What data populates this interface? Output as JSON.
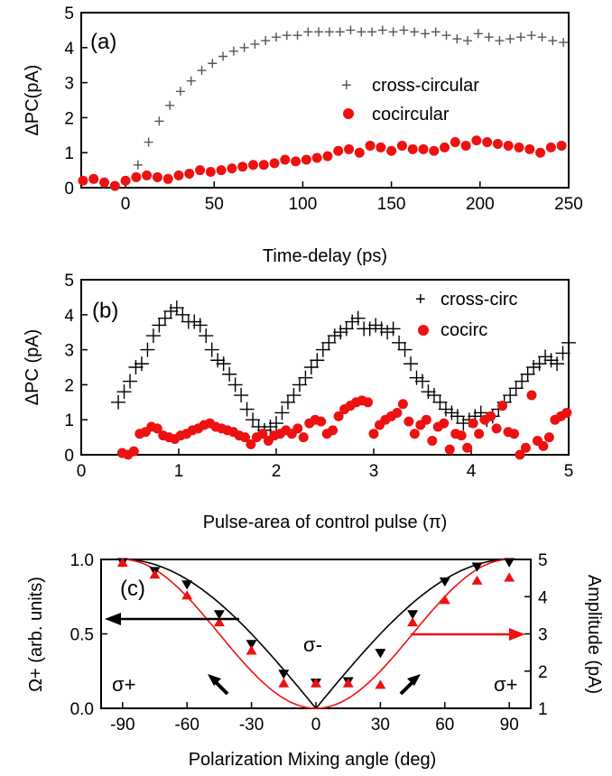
{
  "chart_data": [
    {
      "type": "scatter",
      "panel_label": "(a)",
      "xlabel": "Time-delay (ps)",
      "ylabel": "ΔPC(pA)",
      "xlim": [
        -25,
        250
      ],
      "ylim": [
        0,
        5
      ],
      "xticks": [
        "0",
        "50",
        "100",
        "150",
        "200",
        "250"
      ],
      "yticks": [
        "0",
        "1",
        "2",
        "3",
        "4",
        "5"
      ],
      "legend_position": "right",
      "series": [
        {
          "name": "cross-circular",
          "marker": "plus",
          "color": "#555555",
          "x": [
            7,
            13,
            19,
            25,
            31,
            37,
            43,
            49,
            55,
            61,
            67,
            73,
            79,
            85,
            91,
            97,
            103,
            109,
            115,
            121,
            127,
            133,
            139,
            145,
            151,
            157,
            163,
            169,
            175,
            181,
            187,
            193,
            199,
            205,
            211,
            217,
            223,
            229,
            235,
            241,
            247
          ],
          "y": [
            0.65,
            1.3,
            1.9,
            2.35,
            2.75,
            3.05,
            3.35,
            3.55,
            3.75,
            3.9,
            4.0,
            4.1,
            4.2,
            4.3,
            4.35,
            4.35,
            4.45,
            4.45,
            4.45,
            4.45,
            4.5,
            4.45,
            4.45,
            4.5,
            4.45,
            4.5,
            4.45,
            4.4,
            4.45,
            4.35,
            4.25,
            4.2,
            4.4,
            4.3,
            4.2,
            4.25,
            4.3,
            4.35,
            4.3,
            4.2,
            4.15
          ]
        },
        {
          "name": "cocircular",
          "marker": "circle",
          "color": "#ee1111",
          "x": [
            -24,
            -18,
            -12,
            -6,
            0,
            6,
            12,
            18,
            24,
            30,
            36,
            42,
            48,
            54,
            60,
            66,
            72,
            78,
            84,
            90,
            96,
            102,
            108,
            114,
            120,
            126,
            132,
            138,
            144,
            150,
            156,
            162,
            168,
            174,
            180,
            186,
            192,
            198,
            204,
            210,
            216,
            222,
            228,
            234,
            240,
            246
          ],
          "y": [
            0.2,
            0.25,
            0.15,
            0.05,
            0.2,
            0.3,
            0.35,
            0.3,
            0.25,
            0.35,
            0.4,
            0.5,
            0.45,
            0.5,
            0.55,
            0.6,
            0.65,
            0.65,
            0.7,
            0.8,
            0.75,
            0.8,
            0.85,
            0.9,
            1.05,
            1.1,
            1.0,
            1.2,
            1.15,
            1.05,
            1.2,
            1.1,
            1.1,
            1.05,
            1.15,
            1.3,
            1.2,
            1.35,
            1.3,
            1.25,
            1.2,
            1.15,
            1.1,
            1.0,
            1.15,
            1.2
          ]
        }
      ]
    },
    {
      "type": "scatter",
      "panel_label": "(b)",
      "xlabel": "Pulse-area of control pulse (π)",
      "ylabel": "ΔPC (pA)",
      "xlim": [
        0,
        5
      ],
      "ylim": [
        0,
        5
      ],
      "xticks": [
        "0",
        "1",
        "2",
        "3",
        "4",
        "5"
      ],
      "yticks": [
        "0",
        "1",
        "2",
        "3",
        "4",
        "5"
      ],
      "legend_position": "top-right",
      "series": [
        {
          "name": "cross-circ",
          "marker": "plus",
          "color": "#000000",
          "x": [
            0.38,
            0.44,
            0.5,
            0.56,
            0.62,
            0.68,
            0.74,
            0.8,
            0.86,
            0.92,
            0.98,
            1.04,
            1.1,
            1.16,
            1.22,
            1.28,
            1.34,
            1.4,
            1.46,
            1.52,
            1.58,
            1.64,
            1.7,
            1.76,
            1.82,
            1.88,
            1.94,
            2.0,
            2.06,
            2.12,
            2.18,
            2.24,
            2.3,
            2.36,
            2.42,
            2.48,
            2.54,
            2.6,
            2.66,
            2.72,
            2.78,
            2.84,
            2.9,
            2.96,
            3.02,
            3.08,
            3.14,
            3.2,
            3.26,
            3.32,
            3.38,
            3.44,
            3.5,
            3.56,
            3.62,
            3.68,
            3.74,
            3.8,
            3.86,
            3.92,
            3.98,
            4.04,
            4.1,
            4.16,
            4.22,
            4.28,
            4.34,
            4.4,
            4.46,
            4.52,
            4.58,
            4.64,
            4.7,
            4.76,
            4.82,
            4.88,
            4.94,
            5.0
          ],
          "y": [
            1.5,
            1.8,
            2.1,
            2.5,
            2.6,
            3.0,
            3.4,
            3.7,
            3.9,
            4.1,
            4.2,
            4.0,
            3.8,
            3.8,
            3.7,
            3.4,
            3.0,
            2.7,
            2.6,
            2.3,
            2.0,
            1.7,
            1.3,
            1.0,
            0.8,
            0.7,
            0.8,
            0.9,
            1.2,
            1.5,
            1.7,
            2.0,
            2.2,
            2.5,
            2.7,
            3.0,
            3.2,
            3.4,
            3.5,
            3.6,
            3.8,
            3.9,
            3.6,
            3.6,
            3.7,
            3.6,
            3.5,
            3.6,
            3.2,
            3.0,
            2.6,
            2.2,
            2.1,
            1.8,
            1.7,
            1.5,
            1.3,
            1.2,
            1.1,
            0.9,
            1.0,
            1.1,
            1.2,
            1.0,
            1.1,
            1.3,
            1.5,
            1.7,
            1.9,
            2.1,
            2.3,
            2.5,
            2.6,
            2.8,
            2.7,
            2.6,
            2.9,
            3.2
          ]
        },
        {
          "name": "cocirc",
          "marker": "circle",
          "color": "#ee1111",
          "x": [
            0.42,
            0.48,
            0.54,
            0.6,
            0.66,
            0.72,
            0.78,
            0.84,
            0.9,
            0.96,
            1.02,
            1.08,
            1.14,
            1.2,
            1.26,
            1.32,
            1.38,
            1.44,
            1.5,
            1.56,
            1.62,
            1.68,
            1.74,
            1.8,
            1.86,
            1.92,
            1.98,
            2.04,
            2.1,
            2.16,
            2.22,
            2.28,
            2.34,
            2.4,
            2.46,
            2.52,
            2.58,
            2.64,
            2.7,
            2.76,
            2.82,
            2.88,
            2.94,
            3.0,
            3.06,
            3.12,
            3.18,
            3.24,
            3.3,
            3.36,
            3.42,
            3.48,
            3.54,
            3.6,
            3.66,
            3.72,
            3.78,
            3.84,
            3.9,
            3.96,
            4.02,
            4.08,
            4.14,
            4.2,
            4.26,
            4.32,
            4.38,
            4.44,
            4.5,
            4.56,
            4.62,
            4.68,
            4.74,
            4.8,
            4.86,
            4.92,
            4.98
          ],
          "y": [
            0.05,
            0.0,
            0.1,
            0.6,
            0.65,
            0.8,
            0.75,
            0.55,
            0.5,
            0.45,
            0.55,
            0.6,
            0.7,
            0.75,
            0.85,
            0.9,
            0.8,
            0.75,
            0.7,
            0.65,
            0.55,
            0.5,
            0.3,
            0.5,
            0.6,
            0.4,
            0.55,
            0.6,
            0.7,
            0.6,
            0.75,
            0.5,
            0.9,
            1.0,
            0.95,
            0.6,
            0.7,
            1.1,
            1.3,
            1.4,
            1.5,
            1.55,
            1.5,
            0.6,
            0.85,
            1.0,
            1.1,
            1.2,
            1.45,
            0.95,
            0.6,
            0.85,
            1.0,
            0.4,
            0.8,
            0.9,
            0.15,
            0.6,
            0.55,
            0.2,
            0.9,
            0.6,
            1.0,
            1.1,
            0.75,
            1.4,
            0.65,
            0.6,
            0.0,
            0.2,
            1.7,
            0.4,
            0.25,
            0.5,
            1.0,
            1.1,
            1.2
          ]
        }
      ]
    },
    {
      "type": "line",
      "panel_label": "(c)",
      "xlabel": "Polarization Mixing angle (deg)",
      "ylabel": "Ω+ (arb. units)",
      "ylabel_right": "Amplitude (pA)",
      "xlim": [
        -100,
        100
      ],
      "ylim": [
        0,
        1
      ],
      "ylim_right": [
        1,
        5
      ],
      "xticks": [
        "-90",
        "-60",
        "-30",
        "0",
        "30",
        "60",
        "90"
      ],
      "yticks": [
        "0.0",
        "0.5",
        "1.0"
      ],
      "yticks_right": [
        "1",
        "2",
        "3",
        "4",
        "5"
      ],
      "annotations": [
        "σ+",
        "σ-",
        "σ+"
      ],
      "series": [
        {
          "marker": "triangle-down",
          "color": "#000000",
          "curve": "abs-sin",
          "x": [
            -90,
            -75,
            -60,
            -45,
            -30,
            -15,
            0,
            15,
            30,
            45,
            60,
            75,
            90
          ],
          "y": [
            0.98,
            0.92,
            0.83,
            0.63,
            0.43,
            0.23,
            0.17,
            0.18,
            0.37,
            0.63,
            0.85,
            0.95,
            0.98
          ]
        },
        {
          "marker": "triangle-up",
          "color": "#ee1111",
          "curve": "sin-squared",
          "x": [
            -90,
            -75,
            -60,
            -45,
            -30,
            -15,
            0,
            15,
            30,
            45,
            60,
            75,
            90
          ],
          "y": [
            0.98,
            0.9,
            0.76,
            0.58,
            0.39,
            0.17,
            0.17,
            0.17,
            0.16,
            0.58,
            0.73,
            0.86,
            0.88
          ]
        }
      ]
    }
  ]
}
